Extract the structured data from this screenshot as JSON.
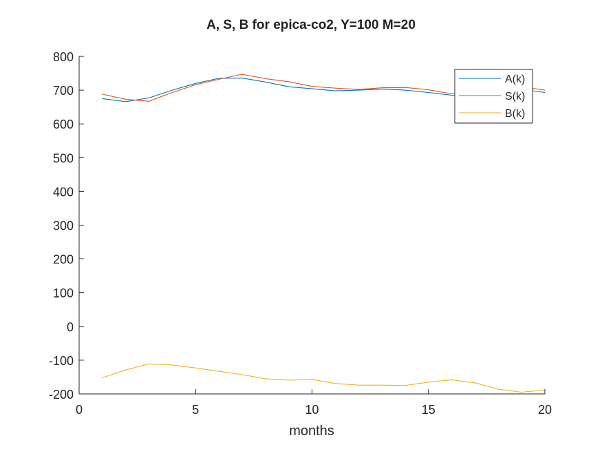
{
  "chart_data": {
    "type": "line",
    "title": "A, S, B for epica-co2, Y=100 M=20",
    "xlabel": "months",
    "ylabel": "",
    "xlim": [
      0,
      20
    ],
    "ylim": [
      -200,
      800
    ],
    "xticks": [
      0,
      5,
      10,
      15,
      20
    ],
    "yticks": [
      -200,
      -100,
      0,
      100,
      200,
      300,
      400,
      500,
      600,
      700,
      800
    ],
    "grid": false,
    "legend_position": "top-right",
    "x": [
      1,
      2,
      3,
      4,
      5,
      6,
      7,
      8,
      9,
      10,
      11,
      12,
      13,
      14,
      15,
      16,
      17,
      18,
      19,
      20
    ],
    "series": [
      {
        "name": "A(k)",
        "color": "#0072BD",
        "values": [
          675,
          666,
          677,
          700,
          720,
          735,
          736,
          724,
          710,
          704,
          698,
          700,
          703,
          700,
          693,
          685,
          688,
          693,
          702,
          693
        ]
      },
      {
        "name": "S(k)",
        "color": "#D95319",
        "values": [
          688,
          673,
          667,
          693,
          716,
          732,
          747,
          734,
          725,
          711,
          706,
          702,
          707,
          708,
          701,
          689,
          691,
          695,
          710,
          700
        ]
      },
      {
        "name": "B(k)",
        "color": "#EDB120",
        "values": [
          -152,
          -129,
          -111,
          -114,
          -123,
          -133,
          -143,
          -155,
          -159,
          -157,
          -169,
          -174,
          -174,
          -175,
          -165,
          -158,
          -167,
          -186,
          -195,
          -188
        ]
      }
    ]
  }
}
